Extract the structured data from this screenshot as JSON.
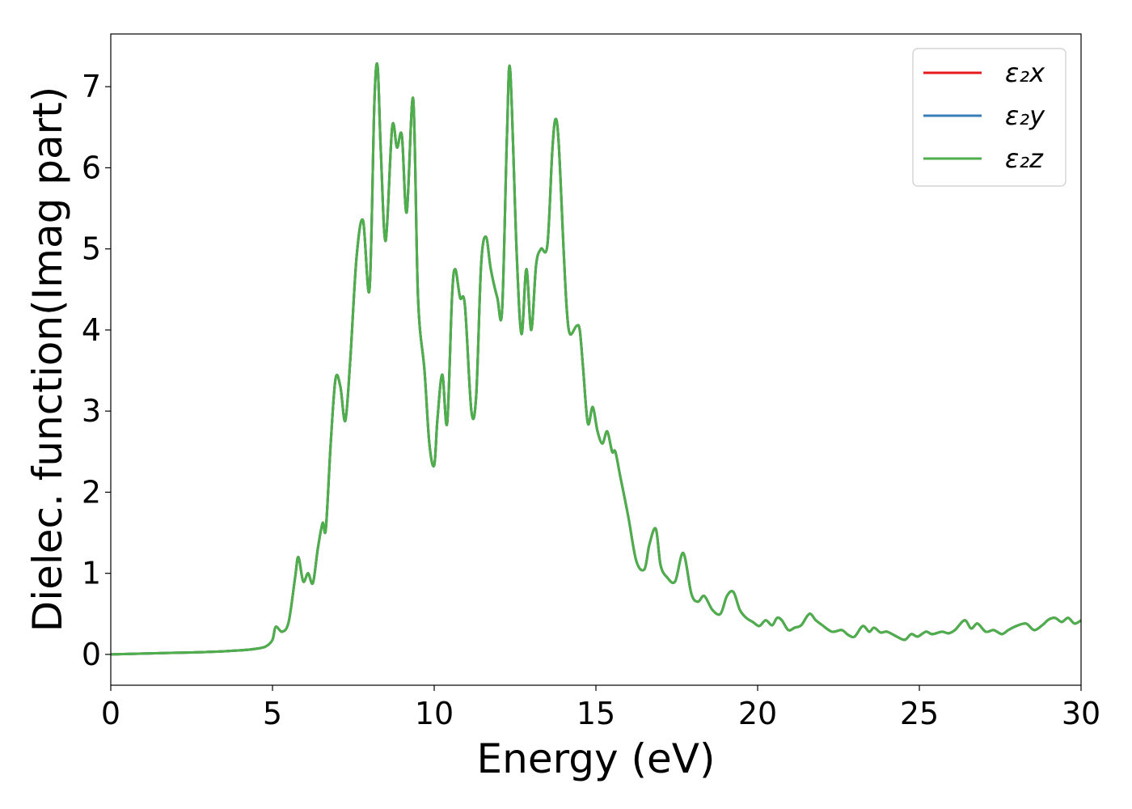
{
  "chart_data": {
    "type": "line",
    "xlabel": "Energy (eV)",
    "ylabel": "Dielec. function(Imag part)",
    "xlim": [
      0,
      30
    ],
    "ylim": [
      -0.38,
      7.65
    ],
    "xticks": [
      0,
      5,
      10,
      15,
      20,
      25,
      30
    ],
    "yticks": [
      0,
      1,
      2,
      3,
      4,
      5,
      6,
      7
    ],
    "grid": false,
    "legend_position": "top-right",
    "x": [
      0,
      1,
      2,
      3,
      4,
      4.5,
      4.8,
      5.0,
      5.1,
      5.3,
      5.5,
      5.7,
      5.8,
      5.95,
      6.1,
      6.25,
      6.4,
      6.55,
      6.65,
      6.8,
      6.95,
      7.1,
      7.25,
      7.4,
      7.6,
      7.8,
      8.0,
      8.15,
      8.25,
      8.35,
      8.5,
      8.7,
      8.85,
      9.0,
      9.15,
      9.35,
      9.5,
      9.7,
      9.85,
      10.0,
      10.1,
      10.25,
      10.4,
      10.55,
      10.65,
      10.8,
      10.95,
      11.15,
      11.3,
      11.45,
      11.6,
      11.75,
      11.95,
      12.1,
      12.25,
      12.35,
      12.55,
      12.7,
      12.85,
      13.0,
      13.15,
      13.3,
      13.5,
      13.65,
      13.75,
      13.85,
      14.0,
      14.1,
      14.2,
      14.4,
      14.5,
      14.6,
      14.75,
      14.9,
      15.05,
      15.2,
      15.35,
      15.5,
      15.6,
      15.75,
      16.0,
      16.25,
      16.5,
      16.65,
      16.85,
      17.0,
      17.2,
      17.45,
      17.7,
      17.95,
      18.15,
      18.35,
      18.6,
      18.85,
      19.05,
      19.25,
      19.45,
      19.65,
      19.85,
      20.05,
      20.25,
      20.45,
      20.6,
      20.75,
      20.95,
      21.15,
      21.35,
      21.6,
      21.8,
      22.0,
      22.3,
      22.6,
      22.8,
      23.0,
      23.25,
      23.45,
      23.6,
      23.8,
      24.0,
      24.3,
      24.55,
      24.75,
      24.95,
      25.2,
      25.4,
      25.7,
      25.9,
      26.1,
      26.4,
      26.6,
      26.8,
      27.05,
      27.3,
      27.55,
      27.75,
      28.0,
      28.3,
      28.55,
      28.8,
      29.0,
      29.2,
      29.4,
      29.6,
      29.8,
      30.0
    ],
    "series": [
      {
        "name": "ε₂x",
        "color": "#e41a1c",
        "values": [
          0.0,
          0.01,
          0.02,
          0.03,
          0.05,
          0.07,
          0.1,
          0.18,
          0.34,
          0.28,
          0.4,
          0.95,
          1.2,
          0.9,
          1.0,
          0.88,
          1.3,
          1.62,
          1.55,
          2.6,
          3.4,
          3.3,
          2.88,
          3.6,
          4.9,
          5.35,
          4.5,
          6.8,
          7.25,
          6.2,
          5.1,
          6.5,
          6.25,
          6.4,
          5.45,
          6.85,
          4.4,
          3.5,
          2.6,
          2.33,
          2.9,
          3.45,
          2.85,
          4.4,
          4.75,
          4.4,
          4.3,
          3.0,
          3.2,
          4.8,
          5.15,
          4.75,
          4.4,
          4.25,
          6.4,
          7.2,
          4.95,
          3.95,
          4.75,
          4.0,
          4.8,
          5.0,
          5.05,
          6.2,
          6.6,
          6.3,
          5.0,
          4.25,
          3.95,
          4.05,
          4.0,
          3.55,
          2.85,
          3.05,
          2.75,
          2.6,
          2.75,
          2.5,
          2.5,
          2.2,
          1.7,
          1.15,
          1.05,
          1.35,
          1.55,
          1.1,
          0.95,
          0.9,
          1.25,
          0.75,
          0.65,
          0.72,
          0.55,
          0.5,
          0.72,
          0.77,
          0.55,
          0.45,
          0.4,
          0.35,
          0.42,
          0.36,
          0.45,
          0.42,
          0.3,
          0.33,
          0.36,
          0.5,
          0.42,
          0.36,
          0.28,
          0.3,
          0.24,
          0.22,
          0.35,
          0.28,
          0.33,
          0.27,
          0.28,
          0.22,
          0.18,
          0.25,
          0.22,
          0.28,
          0.25,
          0.28,
          0.26,
          0.3,
          0.42,
          0.32,
          0.38,
          0.28,
          0.3,
          0.25,
          0.3,
          0.35,
          0.38,
          0.3,
          0.36,
          0.43,
          0.45,
          0.4,
          0.45,
          0.38,
          0.42
        ]
      },
      {
        "name": "ε₂y",
        "color": "#377eb8",
        "values": [
          0.0,
          0.01,
          0.02,
          0.03,
          0.05,
          0.07,
          0.1,
          0.18,
          0.34,
          0.28,
          0.4,
          0.95,
          1.2,
          0.9,
          1.0,
          0.88,
          1.3,
          1.62,
          1.55,
          2.6,
          3.4,
          3.3,
          2.88,
          3.6,
          4.9,
          5.35,
          4.5,
          6.8,
          7.25,
          6.2,
          5.1,
          6.5,
          6.25,
          6.4,
          5.45,
          6.85,
          4.4,
          3.5,
          2.6,
          2.33,
          2.9,
          3.45,
          2.85,
          4.4,
          4.75,
          4.4,
          4.3,
          3.0,
          3.2,
          4.8,
          5.15,
          4.75,
          4.4,
          4.25,
          6.4,
          7.2,
          4.95,
          3.95,
          4.75,
          4.0,
          4.8,
          5.0,
          5.05,
          6.2,
          6.6,
          6.3,
          5.0,
          4.25,
          3.95,
          4.05,
          4.0,
          3.55,
          2.85,
          3.05,
          2.75,
          2.6,
          2.75,
          2.5,
          2.5,
          2.2,
          1.7,
          1.15,
          1.05,
          1.35,
          1.55,
          1.1,
          0.95,
          0.9,
          1.25,
          0.75,
          0.65,
          0.72,
          0.55,
          0.5,
          0.72,
          0.77,
          0.55,
          0.45,
          0.4,
          0.35,
          0.42,
          0.36,
          0.45,
          0.42,
          0.3,
          0.33,
          0.36,
          0.5,
          0.42,
          0.36,
          0.28,
          0.3,
          0.24,
          0.22,
          0.35,
          0.28,
          0.33,
          0.27,
          0.28,
          0.22,
          0.18,
          0.25,
          0.22,
          0.28,
          0.25,
          0.28,
          0.26,
          0.3,
          0.42,
          0.32,
          0.38,
          0.28,
          0.3,
          0.25,
          0.3,
          0.35,
          0.38,
          0.3,
          0.36,
          0.43,
          0.45,
          0.4,
          0.45,
          0.38,
          0.42
        ]
      },
      {
        "name": "ε₂z",
        "color": "#4daf4a",
        "values": [
          0.0,
          0.01,
          0.02,
          0.03,
          0.05,
          0.07,
          0.1,
          0.18,
          0.34,
          0.28,
          0.4,
          0.95,
          1.2,
          0.9,
          1.0,
          0.88,
          1.3,
          1.62,
          1.55,
          2.6,
          3.4,
          3.3,
          2.88,
          3.6,
          4.9,
          5.35,
          4.5,
          6.8,
          7.25,
          6.2,
          5.1,
          6.5,
          6.25,
          6.4,
          5.45,
          6.85,
          4.4,
          3.5,
          2.6,
          2.33,
          2.9,
          3.45,
          2.85,
          4.4,
          4.75,
          4.4,
          4.3,
          3.0,
          3.2,
          4.8,
          5.15,
          4.75,
          4.4,
          4.25,
          6.4,
          7.2,
          4.95,
          3.95,
          4.75,
          4.0,
          4.8,
          5.0,
          5.05,
          6.2,
          6.6,
          6.3,
          5.0,
          4.25,
          3.95,
          4.05,
          4.0,
          3.55,
          2.85,
          3.05,
          2.75,
          2.6,
          2.75,
          2.5,
          2.5,
          2.2,
          1.7,
          1.15,
          1.05,
          1.35,
          1.55,
          1.1,
          0.95,
          0.9,
          1.25,
          0.75,
          0.65,
          0.72,
          0.55,
          0.5,
          0.72,
          0.77,
          0.55,
          0.45,
          0.4,
          0.35,
          0.42,
          0.36,
          0.45,
          0.42,
          0.3,
          0.33,
          0.36,
          0.5,
          0.42,
          0.36,
          0.28,
          0.3,
          0.24,
          0.22,
          0.35,
          0.28,
          0.33,
          0.27,
          0.28,
          0.22,
          0.18,
          0.25,
          0.22,
          0.28,
          0.25,
          0.28,
          0.26,
          0.3,
          0.42,
          0.32,
          0.38,
          0.28,
          0.3,
          0.25,
          0.3,
          0.35,
          0.38,
          0.3,
          0.36,
          0.43,
          0.45,
          0.4,
          0.45,
          0.38,
          0.42
        ]
      }
    ]
  }
}
